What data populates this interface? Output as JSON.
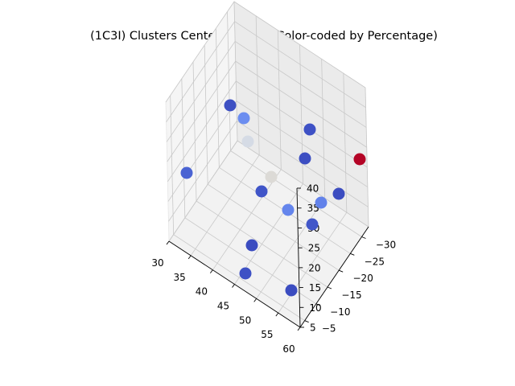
{
  "chart_data": {
    "type": "scatter",
    "projection": "3d",
    "title": "(1C3I) Clusters Center of Mass (Color-coded by Percentage)",
    "xlabel": "",
    "ylabel": "",
    "zlabel": "",
    "xlim": [
      30,
      60
    ],
    "ylim": [
      -33,
      -3
    ],
    "zlim": [
      5,
      40
    ],
    "xticks": [
      "30",
      "35",
      "40",
      "45",
      "50",
      "55",
      "60"
    ],
    "yticks": [
      "−30",
      "−25",
      "−20",
      "−15",
      "−10",
      "−5"
    ],
    "zticks": [
      "5",
      "10",
      "15",
      "20",
      "25",
      "30",
      "35",
      "40"
    ],
    "grid": true,
    "colormap": "coolwarm",
    "legend": "none",
    "points": [
      {
        "color": "#3d50c3"
      },
      {
        "color": "#6b8df0"
      },
      {
        "color": "#d5dbe5"
      },
      {
        "color": "#4a63d3"
      },
      {
        "color": "#dcdad6"
      },
      {
        "color": "#4055c8"
      },
      {
        "color": "#6485ec"
      },
      {
        "color": "#3e51c5"
      },
      {
        "color": "#3c4ec2"
      },
      {
        "color": "#b40426"
      },
      {
        "color": "#3b4cc0"
      },
      {
        "color": "#6282ea"
      },
      {
        "color": "#4257c9"
      },
      {
        "color": "#3b4cc0"
      },
      {
        "color": "#3e51c5"
      },
      {
        "color": "#3b4cc0"
      }
    ]
  }
}
